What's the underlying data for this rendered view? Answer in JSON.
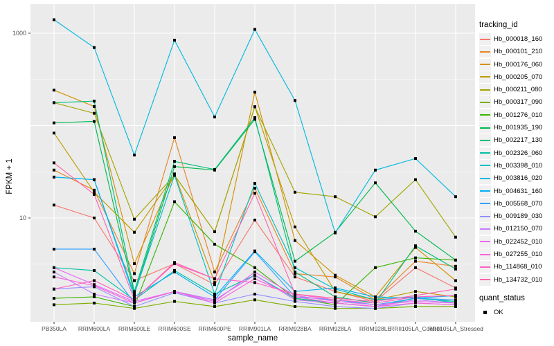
{
  "style": {
    "panel_bg": "#EBEBEB",
    "grid_color": "#FFFFFF",
    "key_bg": "#F0F0F0",
    "point_color": "#000000",
    "axis_text_color": "#4D4D4D",
    "title_text_color": "#000000"
  },
  "chart_data": {
    "type": "line",
    "title": "",
    "xlabel": "sample_name",
    "ylabel": "FPKM + 1",
    "y_scale": "log10",
    "y_tick_labels": [
      "10",
      "1000"
    ],
    "y_tick_values": [
      10,
      1000
    ],
    "y_grid_major": [
      10,
      100,
      1000
    ],
    "y_grid_minor": [
      3.162,
      31.62,
      316.2
    ],
    "ylim": [
      0.78,
      2200
    ],
    "grid": "on",
    "point_shape": "black square",
    "legend_position": "right",
    "x_categories": [
      "PB350LA",
      "RRIM600LA",
      "RRIM600LE",
      "RRIM600SE",
      "RRIM600PE",
      "RRIM901LA",
      "RRIM928BA",
      "RRIM928LA",
      "RRIM928LE",
      "RRII105LA_Control",
      "RRII105LA_Stressed"
    ],
    "legend": {
      "title": "tracking_id"
    },
    "quant_status_legend": {
      "title": "quant_status",
      "items": [
        "OK"
      ]
    },
    "series": [
      {
        "name": "Hb_000018_160",
        "color": "#F8766D",
        "values": [
          13.8,
          10,
          2.1,
          3.2,
          1.9,
          9.5,
          2.3,
          1.6,
          1.25,
          2.9,
          1.75
        ]
      },
      {
        "name": "Hb_000101_210",
        "color": "#E88526",
        "values": [
          33,
          20,
          2.5,
          74,
          2.6,
          21,
          2.5,
          2.3,
          1.3,
          3.4,
          3.0
        ]
      },
      {
        "name": "Hb_000176_060",
        "color": "#D39200",
        "values": [
          242,
          161,
          3.2,
          30,
          2.0,
          230,
          5.7,
          2.4,
          1.4,
          4.8,
          2.1
        ]
      },
      {
        "name": "Hb_000205_070",
        "color": "#BB9D00",
        "values": [
          83,
          19,
          7.0,
          29,
          7.1,
          160,
          8.0,
          1.6,
          1.3,
          1.6,
          1.4
        ]
      },
      {
        "name": "Hb_000211_080",
        "color": "#A3A500",
        "values": [
          177,
          136,
          9.7,
          29,
          7.1,
          160,
          19,
          17,
          10.3,
          26,
          6.2
        ]
      },
      {
        "name": "Hb_000317_090",
        "color": "#7CAE00",
        "values": [
          1.15,
          1.2,
          1.05,
          1.25,
          1.1,
          1.3,
          1.1,
          1.05,
          1.05,
          1.1,
          1.1
        ]
      },
      {
        "name": "Hb_001276_010",
        "color": "#39B600",
        "values": [
          1.35,
          1.4,
          1.1,
          15,
          5.2,
          2.9,
          1.35,
          1.15,
          2.9,
          3.7,
          3.5
        ]
      },
      {
        "name": "Hb_001935_190",
        "color": "#00BB4E",
        "values": [
          107,
          111,
          1.5,
          36,
          33,
          117,
          3.4,
          7.0,
          24,
          7.2,
          3.5
        ]
      },
      {
        "name": "Hb_002217_130",
        "color": "#00BF7D",
        "values": [
          177,
          184,
          1.6,
          41,
          33.5,
          122,
          2.6,
          1.4,
          1.2,
          5.0,
          2.8
        ]
      },
      {
        "name": "Hb_002326_060",
        "color": "#00C1A3",
        "values": [
          2.9,
          2.7,
          1.3,
          2.7,
          1.5,
          2.4,
          1.35,
          1.2,
          1.1,
          1.35,
          1.25
        ]
      },
      {
        "name": "Hb_003398_010",
        "color": "#00BFC4",
        "values": [
          27.7,
          26,
          1.5,
          29,
          1.5,
          23.7,
          2.9,
          1.7,
          1.3,
          1.4,
          1.2
        ]
      },
      {
        "name": "Hb_003816_020",
        "color": "#00BAE0",
        "values": [
          1400,
          700,
          48,
          840,
          124,
          1100,
          187,
          6.9,
          33,
          44,
          17
        ]
      },
      {
        "name": "Hb_004631_160",
        "color": "#00B0F6",
        "values": [
          27.7,
          26,
          1.4,
          2.6,
          1.4,
          4.4,
          1.6,
          1.75,
          1.4,
          1.35,
          1.45
        ]
      },
      {
        "name": "Hb_005568_070",
        "color": "#35A2FF",
        "values": [
          4.6,
          4.6,
          1.2,
          1.6,
          1.3,
          4.3,
          1.4,
          1.3,
          1.15,
          1.35,
          1.3
        ]
      },
      {
        "name": "Hb_009189_030",
        "color": "#9590FF",
        "values": [
          1.7,
          1.8,
          1.1,
          1.55,
          1.2,
          1.5,
          1.25,
          1.1,
          1.05,
          1.2,
          1.15
        ]
      },
      {
        "name": "Hb_012150_070",
        "color": "#C77CFF",
        "values": [
          2.6,
          1.5,
          1.2,
          1.6,
          1.3,
          2.4,
          1.3,
          1.2,
          1.1,
          1.3,
          1.2
        ]
      },
      {
        "name": "Hb_022452_010",
        "color": "#E76BF3",
        "values": [
          2.9,
          1.9,
          1.25,
          1.6,
          1.25,
          2.6,
          1.45,
          1.25,
          1.15,
          1.25,
          1.2
        ]
      },
      {
        "name": "Hb_027255_010",
        "color": "#FA62DB",
        "values": [
          2.3,
          1.85,
          1.2,
          1.6,
          1.2,
          2.2,
          1.4,
          1.2,
          1.1,
          1.2,
          1.15
        ]
      },
      {
        "name": "Hb_114868_010",
        "color": "#FF61C9",
        "values": [
          1.7,
          2.1,
          1.3,
          3.2,
          2.2,
          2.0,
          1.5,
          1.3,
          1.2,
          1.4,
          1.45
        ]
      },
      {
        "name": "Hb_134732_010",
        "color": "#FF65AC",
        "values": [
          39.5,
          18,
          1.3,
          3.3,
          2.2,
          18.5,
          1.5,
          1.35,
          1.25,
          1.45,
          1.7
        ]
      }
    ]
  }
}
